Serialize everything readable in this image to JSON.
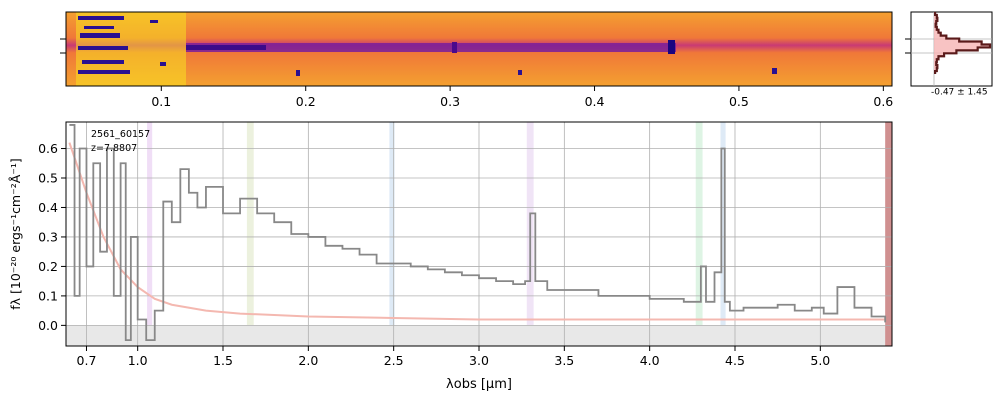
{
  "chart_data": [
    {
      "panel": "2d-spectrum",
      "type": "heatmap",
      "colormap": "plasma",
      "x_ticks": [
        "0.1",
        "0.2",
        "0.3",
        "0.4",
        "0.5",
        "0.6"
      ],
      "x_tick_values": [
        0.1,
        0.2,
        0.3,
        0.4,
        0.5,
        0.6
      ],
      "xlim": [
        0.034,
        0.606
      ]
    },
    {
      "panel": "spatial-profile",
      "type": "line",
      "annotation": "-0.47 ± 1.45",
      "profile_x": [
        0.02,
        0.05,
        0.06,
        0.04,
        0.03,
        0.05,
        0.08,
        0.12,
        0.22,
        0.45,
        0.85,
        1.0,
        0.78,
        0.4,
        0.18,
        0.08,
        0.05,
        0.04,
        0.06,
        0.05,
        0.02
      ]
    },
    {
      "panel": "1d-spectrum",
      "type": "line",
      "label_id": "2561_60157",
      "label_z": "z=7.8807",
      "xlabel": "λobs [μm]",
      "ylabel": "fλ [10⁻²⁰ ergs⁻¹cm⁻²Å⁻¹]",
      "xlim": [
        0.58,
        5.42
      ],
      "ylim": [
        -0.07,
        0.69
      ],
      "x_ticks": [
        "0.7",
        "1.0",
        "1.5",
        "2.0",
        "2.5",
        "3.0",
        "3.5",
        "4.0",
        "4.5",
        "5.0"
      ],
      "x_tick_values": [
        0.7,
        1.0,
        1.5,
        2.0,
        2.5,
        3.0,
        3.5,
        4.0,
        4.5,
        5.0
      ],
      "y_ticks": [
        "0.0",
        "0.1",
        "0.2",
        "0.3",
        "0.4",
        "0.5",
        "0.6"
      ],
      "y_tick_values": [
        0.0,
        0.1,
        0.2,
        0.3,
        0.4,
        0.5,
        0.6
      ],
      "grid": true,
      "line_bands": [
        {
          "center": 1.07,
          "width": 0.03,
          "color": "#e6c8f0"
        },
        {
          "center": 1.66,
          "width": 0.04,
          "color": "#e0e8c8"
        },
        {
          "center": 2.49,
          "width": 0.03,
          "color": "#c8dcf0"
        },
        {
          "center": 3.3,
          "width": 0.04,
          "color": "#e6d2f0"
        },
        {
          "center": 4.29,
          "width": 0.04,
          "color": "#c8ecd2"
        },
        {
          "center": 4.43,
          "width": 0.03,
          "color": "#c8dcf0"
        }
      ],
      "spectrum": {
        "color": "#888888",
        "x": [
          0.6,
          0.63,
          0.66,
          0.7,
          0.74,
          0.78,
          0.82,
          0.86,
          0.9,
          0.93,
          0.96,
          1.0,
          1.05,
          1.1,
          1.15,
          1.2,
          1.25,
          1.3,
          1.35,
          1.4,
          1.5,
          1.6,
          1.7,
          1.8,
          1.9,
          2.0,
          2.1,
          2.2,
          2.3,
          2.4,
          2.5,
          2.6,
          2.7,
          2.8,
          2.9,
          3.0,
          3.1,
          3.2,
          3.27,
          3.3,
          3.33,
          3.4,
          3.5,
          3.6,
          3.7,
          3.8,
          3.9,
          4.0,
          4.1,
          4.2,
          4.27,
          4.3,
          4.33,
          4.38,
          4.42,
          4.44,
          4.47,
          4.55,
          4.65,
          4.75,
          4.85,
          4.95,
          5.02,
          5.1,
          5.2,
          5.3,
          5.38
        ],
        "y": [
          0.68,
          0.1,
          0.6,
          0.2,
          0.55,
          0.25,
          0.6,
          0.1,
          0.55,
          -0.05,
          0.3,
          0.02,
          -0.05,
          0.05,
          0.42,
          0.35,
          0.53,
          0.45,
          0.4,
          0.47,
          0.38,
          0.43,
          0.38,
          0.35,
          0.31,
          0.3,
          0.27,
          0.26,
          0.24,
          0.21,
          0.21,
          0.2,
          0.19,
          0.18,
          0.17,
          0.16,
          0.15,
          0.14,
          0.15,
          0.38,
          0.15,
          0.12,
          0.12,
          0.12,
          0.1,
          0.1,
          0.1,
          0.09,
          0.09,
          0.08,
          0.08,
          0.2,
          0.08,
          0.18,
          0.6,
          0.08,
          0.05,
          0.06,
          0.06,
          0.07,
          0.05,
          0.06,
          0.04,
          0.13,
          0.06,
          0.03,
          0.01
        ]
      },
      "model": {
        "color": "#f4b8b0",
        "x": [
          0.6,
          0.7,
          0.8,
          0.9,
          1.0,
          1.1,
          1.2,
          1.4,
          1.6,
          1.8,
          2.0,
          2.5,
          3.0,
          3.5,
          4.0,
          4.5,
          5.0,
          5.38
        ],
        "y": [
          0.62,
          0.45,
          0.3,
          0.19,
          0.13,
          0.09,
          0.07,
          0.05,
          0.04,
          0.035,
          0.03,
          0.025,
          0.02,
          0.02,
          0.02,
          0.02,
          0.02,
          0.02
        ]
      },
      "error_color": "#e8e8e8"
    }
  ]
}
